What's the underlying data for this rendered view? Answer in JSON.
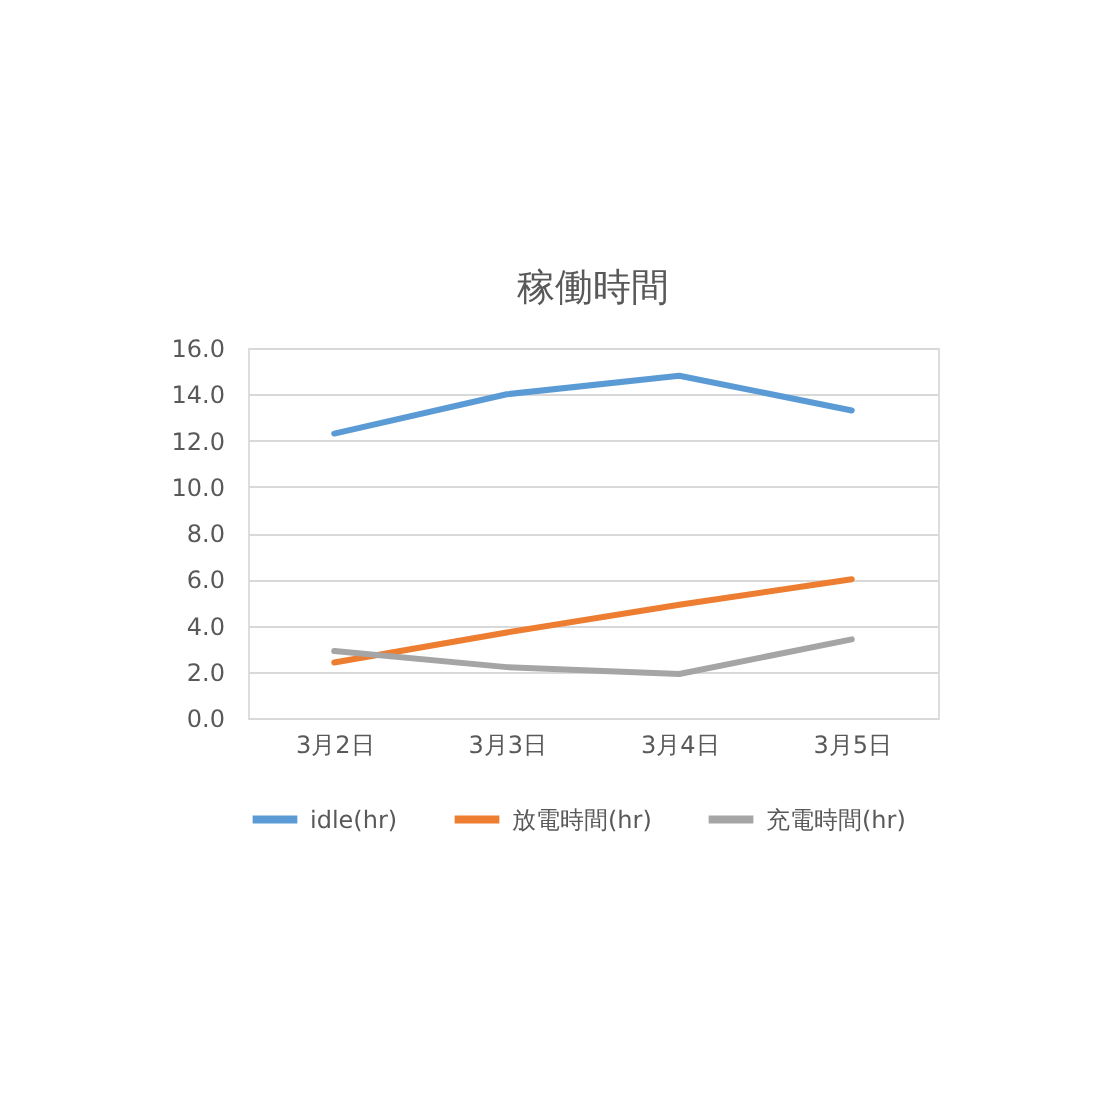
{
  "chart_data": {
    "type": "line",
    "title": "稼働時間",
    "categories": [
      "3月2日",
      "3月3日",
      "3月4日",
      "3月5日"
    ],
    "series": [
      {
        "name": "idle(hr)",
        "color": "#5b9bd5",
        "values": [
          12.3,
          14.0,
          14.8,
          13.3
        ]
      },
      {
        "name": "放電時間(hr)",
        "color": "#ed7d31",
        "values": [
          2.4,
          3.7,
          4.9,
          6.0
        ]
      },
      {
        "name": "充電時間(hr)",
        "color": "#a5a5a5",
        "values": [
          2.9,
          2.2,
          1.9,
          3.4
        ]
      }
    ],
    "ylim": [
      0,
      16
    ],
    "yticks": [
      {
        "value": 0,
        "label": "0.0"
      },
      {
        "value": 2,
        "label": "2.0"
      },
      {
        "value": 4,
        "label": "4.0"
      },
      {
        "value": 6,
        "label": "6.0"
      },
      {
        "value": 8,
        "label": "8.0"
      },
      {
        "value": 10,
        "label": "10.0"
      },
      {
        "value": 12,
        "label": "12.0"
      },
      {
        "value": 14,
        "label": "14.0"
      },
      {
        "value": 16,
        "label": "16.0"
      }
    ],
    "grid": "y",
    "legend": "bottom",
    "marker": "none",
    "line_style": "solid"
  }
}
